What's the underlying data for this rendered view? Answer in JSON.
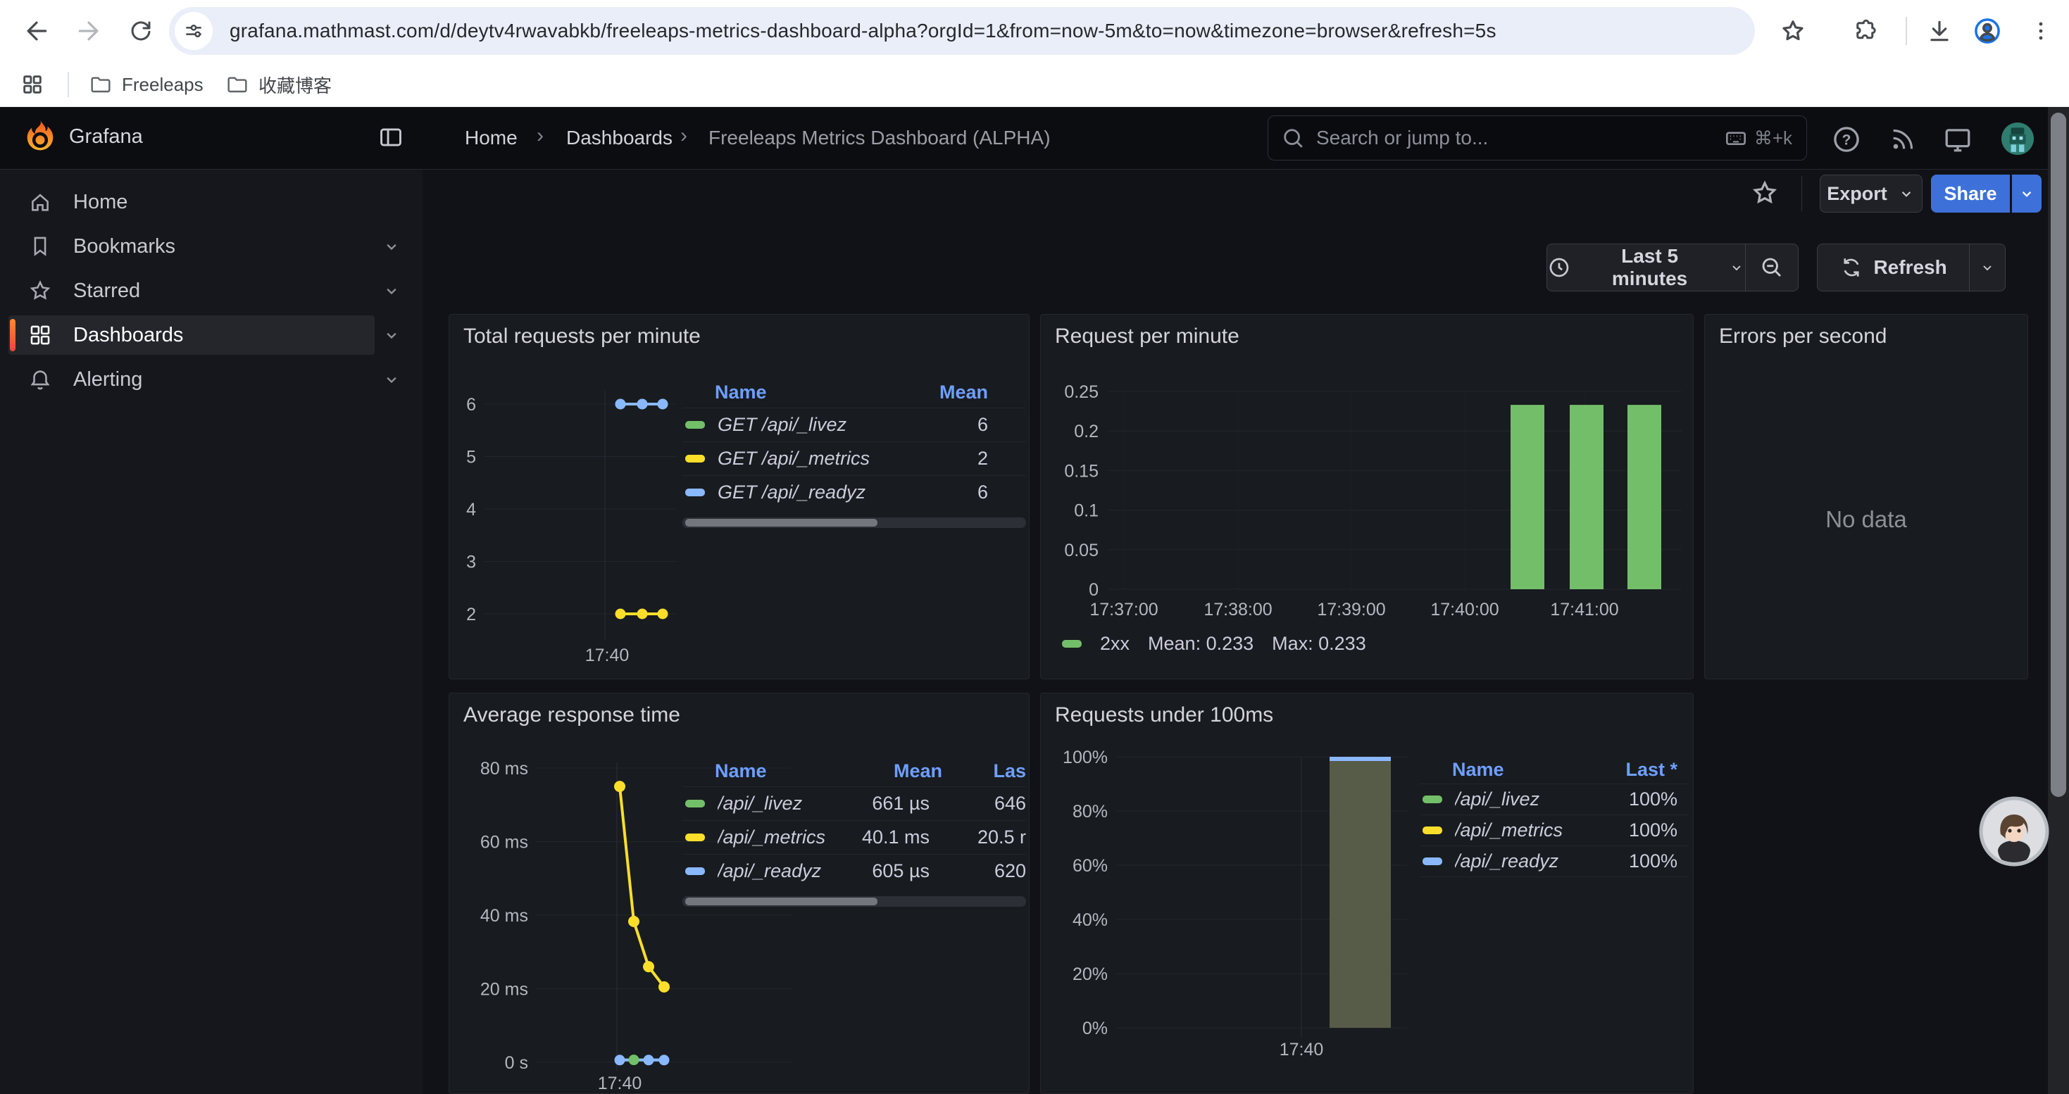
{
  "browser": {
    "url": "grafana.mathmast.com/d/deytv4rwavabkb/freeleaps-metrics-dashboard-alpha?orgId=1&from=now-5m&to=now&timezone=browser&refresh=5s",
    "bookmarks": [
      {
        "label": "Freeleaps"
      },
      {
        "label": "收藏博客"
      }
    ]
  },
  "nav": {
    "brand": "Grafana",
    "breadcrumbs": [
      "Home",
      "Dashboards",
      "Freeleaps Metrics Dashboard (ALPHA)"
    ],
    "separator": "›",
    "search_placeholder": "Search or jump to...",
    "search_shortcut": "⌘+k"
  },
  "sidebar": {
    "items": [
      {
        "label": "Home",
        "expandable": false,
        "active": false
      },
      {
        "label": "Bookmarks",
        "expandable": true,
        "active": false
      },
      {
        "label": "Starred",
        "expandable": true,
        "active": false
      },
      {
        "label": "Dashboards",
        "expandable": true,
        "active": true
      },
      {
        "label": "Alerting",
        "expandable": true,
        "active": false
      }
    ]
  },
  "toolbar": {
    "export_label": "Export",
    "share_label": "Share",
    "time_range": "Last 5 minutes",
    "refresh_label": "Refresh"
  },
  "panels": {
    "p1": {
      "title": "Total requests per minute",
      "legend_headers": [
        "Name",
        "Mean"
      ],
      "legend_rows": [
        {
          "name": "GET /api/_livez",
          "mean": "6",
          "color": "#73bf69"
        },
        {
          "name": "GET /api/_metrics",
          "mean": "2",
          "color": "#fade2a"
        },
        {
          "name": "GET /api/_readyz",
          "mean": "6",
          "color": "#8ab8ff"
        }
      ],
      "chart": {
        "type": "line",
        "y_ticks": [
          "6",
          "5",
          "4",
          "3",
          "2"
        ],
        "x_ticks": [
          "17:40"
        ],
        "y_range": [
          2,
          6
        ],
        "series": [
          {
            "name": "GET /api/_livez",
            "color": "#73bf69",
            "values": [
              6,
              6,
              6
            ]
          },
          {
            "name": "GET /api/_metrics",
            "color": "#fade2a",
            "values": [
              2,
              2,
              2
            ]
          },
          {
            "name": "GET /api/_readyz",
            "color": "#8ab8ff",
            "values": [
              6,
              6,
              6
            ]
          }
        ]
      }
    },
    "p2": {
      "title": "Request per minute",
      "legend": {
        "series": "2xx",
        "mean": "Mean: 0.233",
        "max": "Max: 0.233"
      },
      "chart": {
        "type": "bar",
        "y_ticks": [
          "0.25",
          "0.2",
          "0.15",
          "0.1",
          "0.05",
          "0"
        ],
        "x_ticks": [
          "17:37:00",
          "17:38:00",
          "17:39:00",
          "17:40:00",
          "17:41:00"
        ],
        "y_max": 0.25,
        "color": "#73bf69",
        "bars": [
          {
            "time": "17:40:30",
            "value": 0.233
          },
          {
            "time": "17:41:00",
            "value": 0.233
          },
          {
            "time": "17:41:30",
            "value": 0.233
          }
        ]
      }
    },
    "p3": {
      "title": "Errors per second",
      "message": "No data"
    },
    "p4": {
      "title": "Average response time",
      "legend_headers": [
        "Name",
        "Mean",
        "Las"
      ],
      "legend_rows": [
        {
          "name": "/api/_livez",
          "mean": "661 µs",
          "last": "646",
          "color": "#73bf69"
        },
        {
          "name": "/api/_metrics",
          "mean": "40.1 ms",
          "last": "20.5 r",
          "color": "#fade2a"
        },
        {
          "name": "/api/_readyz",
          "mean": "605 µs",
          "last": "620",
          "color": "#8ab8ff"
        }
      ],
      "chart": {
        "type": "line",
        "y_ticks": [
          "80 ms",
          "60 ms",
          "40 ms",
          "20 ms",
          "0 s"
        ],
        "x_ticks": [
          "17:40"
        ],
        "y_max_ms": 80,
        "series": [
          {
            "name": "/api/_metrics",
            "color": "#fade2a",
            "values_ms": [
              75,
              38.3,
              26,
              20.5
            ]
          },
          {
            "name": "/api/_livez",
            "color": "#73bf69",
            "values_ms": [
              0.66,
              0.66,
              0.66,
              0.65
            ]
          },
          {
            "name": "/api/_readyz",
            "color": "#8ab8ff",
            "values_ms": [
              0.62,
              0.62,
              0.62,
              0.62
            ]
          }
        ]
      }
    },
    "p5": {
      "title": "Requests under 100ms",
      "legend_headers": [
        "Name",
        "Last *"
      ],
      "legend_rows": [
        {
          "name": "/api/_livez",
          "last": "100%",
          "color": "#73bf69"
        },
        {
          "name": "/api/_metrics",
          "last": "100%",
          "color": "#fade2a"
        },
        {
          "name": "/api/_readyz",
          "last": "100%",
          "color": "#8ab8ff"
        }
      ],
      "chart": {
        "type": "bar",
        "y_ticks": [
          "100%",
          "80%",
          "60%",
          "40%",
          "20%",
          "0%"
        ],
        "x_ticks": [
          "17:40"
        ],
        "y_max": 100,
        "color": "#565c48",
        "cap_color": "#8ab8ff",
        "bars": [
          {
            "time": "17:40",
            "value": 100
          }
        ]
      }
    }
  }
}
